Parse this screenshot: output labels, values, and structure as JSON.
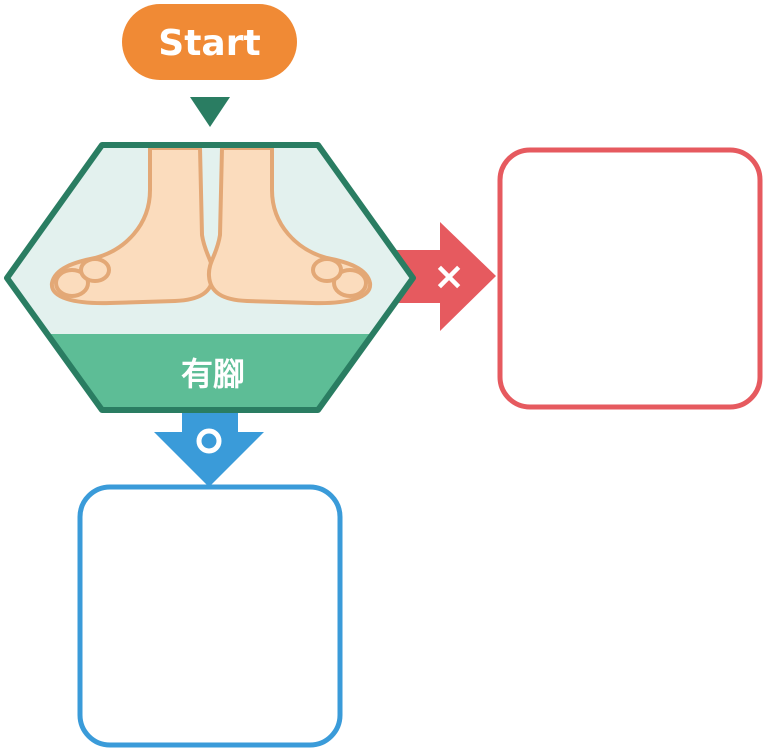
{
  "start": {
    "label": "Start"
  },
  "decision": {
    "label": "有腳",
    "illustration": "pair-of-feet"
  },
  "branches": {
    "no": {
      "marker": "×",
      "color": "#e65a5f"
    },
    "yes": {
      "marker": "○",
      "color": "#3a9bd9"
    }
  },
  "colors": {
    "start_fill": "#f08a35",
    "hex_stroke": "#2a7d62",
    "hex_top_fill": "#e3f1ee",
    "hex_band_fill": "#5dbd96",
    "connector": "#2a7d62",
    "foot_fill": "#fbdcbd",
    "foot_stroke": "#e3a876"
  }
}
